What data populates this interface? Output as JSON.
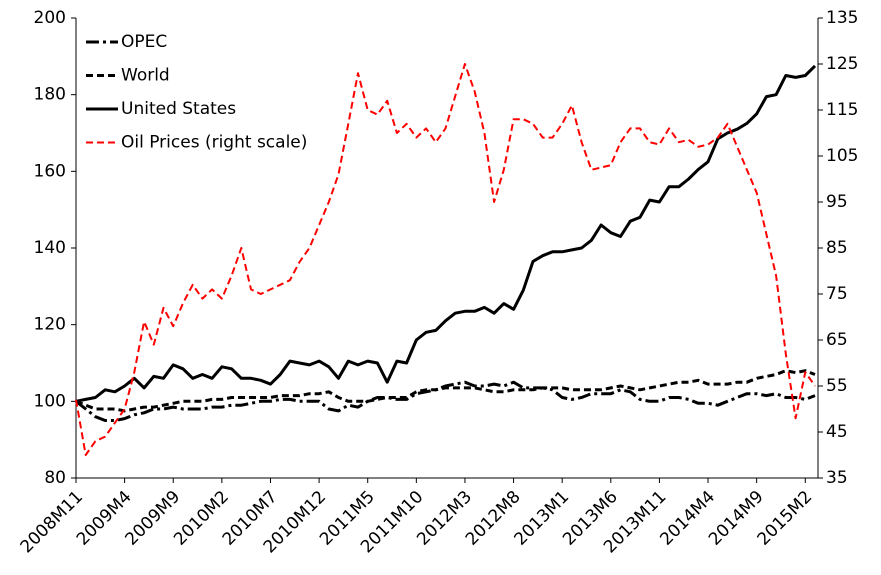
{
  "chart_data": {
    "type": "line",
    "categories": [
      "2008M11",
      null,
      null,
      null,
      null,
      "2009M4",
      null,
      null,
      null,
      null,
      "2009M9",
      null,
      null,
      null,
      null,
      "2010M2",
      null,
      null,
      null,
      null,
      "2010M7",
      null,
      null,
      null,
      null,
      "2010M12",
      null,
      null,
      null,
      null,
      "2011M5",
      null,
      null,
      null,
      null,
      "2011M10",
      null,
      null,
      null,
      null,
      "2012M3",
      null,
      null,
      null,
      null,
      "2012M8",
      null,
      null,
      null,
      null,
      "2013M1",
      null,
      null,
      null,
      null,
      "2013M6",
      null,
      null,
      null,
      null,
      "2013M11",
      null,
      null,
      null,
      null,
      "2014M4",
      null,
      null,
      null,
      null,
      "2014M9",
      null,
      null,
      null,
      null,
      "2015M2",
      null
    ],
    "series": [
      {
        "name": "OPEC",
        "color": "#000000",
        "dash": "dashdot",
        "values": [
          100,
          98,
          96,
          95,
          95,
          95.5,
          96.5,
          97,
          98,
          98,
          98.5,
          98,
          98,
          98,
          98.5,
          98.5,
          99,
          99,
          99.5,
          100,
          100,
          100.5,
          100.5,
          100,
          100,
          100,
          98,
          97.5,
          99,
          98.5,
          100,
          101,
          101,
          100.5,
          100.5,
          102,
          102.5,
          103,
          104,
          104.5,
          105,
          104,
          104,
          104.5,
          104,
          105,
          103.5,
          103.5,
          103.5,
          103,
          101,
          100.5,
          101,
          102,
          102,
          102,
          103,
          102.5,
          100.5,
          100,
          100,
          101,
          101,
          100.5,
          99.5,
          99.5,
          99,
          100,
          101,
          102,
          102,
          101.5,
          102,
          101,
          101,
          100.5,
          101.5
        ]
      },
      {
        "name": "World",
        "color": "#000000",
        "dash": "dashed",
        "values": [
          100,
          99,
          98,
          98,
          98,
          97.5,
          98,
          98.5,
          98.5,
          99,
          99.5,
          100,
          100,
          100,
          100.5,
          100.5,
          101,
          101,
          101,
          101,
          101,
          101.5,
          101.5,
          101.5,
          102,
          102,
          102.5,
          101,
          100,
          100,
          100,
          100.5,
          101,
          101,
          101,
          102.5,
          103,
          103,
          103.5,
          103.5,
          103.5,
          103.5,
          103,
          102.5,
          102.5,
          103,
          103,
          103,
          103.5,
          103.5,
          103.5,
          103,
          103,
          103,
          103,
          103.5,
          104,
          103.5,
          103,
          103.5,
          104,
          104.5,
          105,
          105,
          105.5,
          104.5,
          104.5,
          104.5,
          105,
          105,
          106,
          106.5,
          107,
          108,
          107.5,
          108,
          107
        ]
      },
      {
        "name": "United States",
        "color": "#000000",
        "dash": "solid",
        "values": [
          100,
          100.5,
          101,
          103,
          102.5,
          104,
          106,
          103.5,
          106.5,
          106,
          109.5,
          108.5,
          106,
          107,
          106,
          109,
          108.5,
          106,
          106,
          105.5,
          104.5,
          107,
          110.5,
          110,
          109.5,
          110.5,
          109,
          106,
          110.5,
          109.5,
          110.5,
          110,
          105,
          110.5,
          110,
          116,
          118,
          118.5,
          121,
          123,
          123.5,
          123.5,
          124.5,
          123,
          125.5,
          124,
          129,
          136.5,
          138,
          139,
          139,
          139.5,
          140,
          142,
          146,
          144,
          143,
          147,
          148,
          152.5,
          152,
          156,
          156,
          158,
          160.5,
          162.5,
          168.5,
          170,
          171,
          172.5,
          175,
          179.5,
          180,
          185,
          184.5,
          185,
          187.5
        ]
      },
      {
        "name": "Oil Prices (right scale)",
        "color": "#ff0000",
        "dash": "dashed",
        "axis": "y2",
        "values": [
          52,
          40,
          43,
          44,
          47,
          50,
          58,
          69,
          64,
          72,
          68,
          73,
          77,
          74,
          76,
          74,
          79,
          85,
          76,
          75,
          76,
          77,
          78,
          82,
          85,
          90,
          95,
          101,
          112,
          123,
          115,
          114,
          117,
          110,
          112,
          109,
          111,
          108,
          111,
          118,
          125,
          119,
          110,
          95,
          102,
          113,
          113,
          112,
          109,
          109,
          112,
          116,
          108,
          102,
          102.5,
          103,
          108,
          111,
          111,
          108,
          107.5,
          111,
          108,
          108.5,
          107,
          107.5,
          109,
          112,
          107,
          102,
          97,
          88,
          79,
          62,
          48,
          58,
          55
        ]
      }
    ],
    "ylim": [
      80,
      200
    ],
    "yticks": [
      80,
      100,
      120,
      140,
      160,
      180,
      200
    ],
    "y2lim": [
      35,
      135
    ],
    "y2ticks": [
      35,
      45,
      55,
      65,
      75,
      85,
      95,
      105,
      115,
      125,
      135
    ],
    "grid": false,
    "legend": "upper left"
  }
}
